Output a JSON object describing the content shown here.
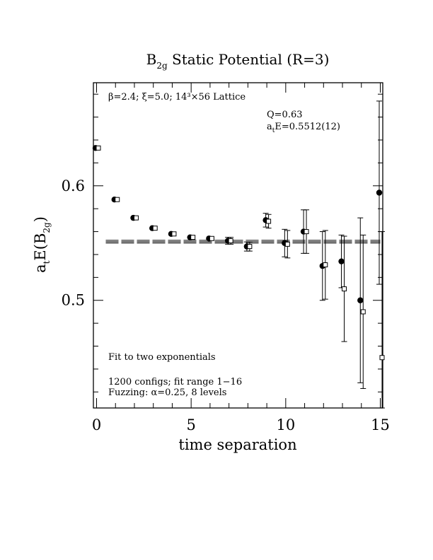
{
  "chart_data": {
    "type": "scatter",
    "title": {
      "main": "B",
      "sub": "2g",
      "rest": " Static Potential (R=3)"
    },
    "xlabel": "time separation",
    "ylabel": {
      "a": "a",
      "a_sub": "t",
      "mid": "E(B",
      "b_sub": "2g",
      "end": ")"
    },
    "xlim": [
      0,
      15
    ],
    "ylim": [
      0.406,
      0.69
    ],
    "x_ticks": [
      0,
      5,
      10,
      15
    ],
    "x_tick_labels": [
      "0",
      "5",
      "10",
      "15"
    ],
    "y_ticks": [
      0.5,
      0.6
    ],
    "y_tick_labels": [
      "0.5",
      "0.6"
    ],
    "annotations": {
      "top_left": "β=2.4; ξ=5.0; 14³×56 Lattice",
      "q": "Q=0.63",
      "energy": {
        "a": "a",
        "sub": "t",
        "rest": "E=0.5512(12)"
      },
      "fit_text": "Fit to two exponentials",
      "configs_text": "1200 configs; fit range 1−16",
      "fuzz_text": "Fuzzing: α=0.25, 8 levels"
    },
    "fit": {
      "value": 0.5512,
      "error": 0.0012,
      "x_range": [
        0,
        15
      ]
    },
    "series": [
      {
        "marker": "filled-circle",
        "points": [
          {
            "x": 0,
            "y": 0.633,
            "err": 0.0005
          },
          {
            "x": 1,
            "y": 0.588,
            "err": 0.0008
          },
          {
            "x": 2,
            "y": 0.572,
            "err": 0.001
          },
          {
            "x": 3,
            "y": 0.563,
            "err": 0.0015
          },
          {
            "x": 4,
            "y": 0.558,
            "err": 0.0015
          },
          {
            "x": 5,
            "y": 0.555,
            "err": 0.002
          },
          {
            "x": 6,
            "y": 0.554,
            "err": 0.002
          },
          {
            "x": 7,
            "y": 0.552,
            "err": 0.003
          },
          {
            "x": 8,
            "y": 0.547,
            "err": 0.004
          },
          {
            "x": 9,
            "y": 0.57,
            "err": 0.006
          },
          {
            "x": 10,
            "y": 0.55,
            "err": 0.012
          },
          {
            "x": 11,
            "y": 0.56,
            "err": 0.019
          },
          {
            "x": 12,
            "y": 0.53,
            "err": 0.03
          },
          {
            "x": 13,
            "y": 0.534,
            "err": 0.023
          },
          {
            "x": 14,
            "y": 0.5,
            "err": 0.072
          },
          {
            "x": 15,
            "y": 0.594,
            "err": 0.08
          }
        ]
      },
      {
        "marker": "open-square",
        "points": [
          {
            "x": 0,
            "y": 0.633,
            "err": 0.0005
          },
          {
            "x": 1,
            "y": 0.588,
            "err": 0.0008
          },
          {
            "x": 2,
            "y": 0.572,
            "err": 0.001
          },
          {
            "x": 3,
            "y": 0.563,
            "err": 0.0015
          },
          {
            "x": 4,
            "y": 0.558,
            "err": 0.0015
          },
          {
            "x": 5,
            "y": 0.555,
            "err": 0.002
          },
          {
            "x": 6,
            "y": 0.554,
            "err": 0.002
          },
          {
            "x": 7,
            "y": 0.552,
            "err": 0.003
          },
          {
            "x": 8,
            "y": 0.547,
            "err": 0.004
          },
          {
            "x": 9,
            "y": 0.569,
            "err": 0.006
          },
          {
            "x": 10,
            "y": 0.549,
            "err": 0.012
          },
          {
            "x": 11,
            "y": 0.56,
            "err": 0.019
          },
          {
            "x": 12,
            "y": 0.531,
            "err": 0.03
          },
          {
            "x": 13,
            "y": 0.51,
            "err": 0.046
          },
          {
            "x": 14,
            "y": 0.49,
            "err": 0.067
          },
          {
            "x": 15,
            "y": 0.45,
            "err": 0.11
          }
        ]
      }
    ]
  }
}
